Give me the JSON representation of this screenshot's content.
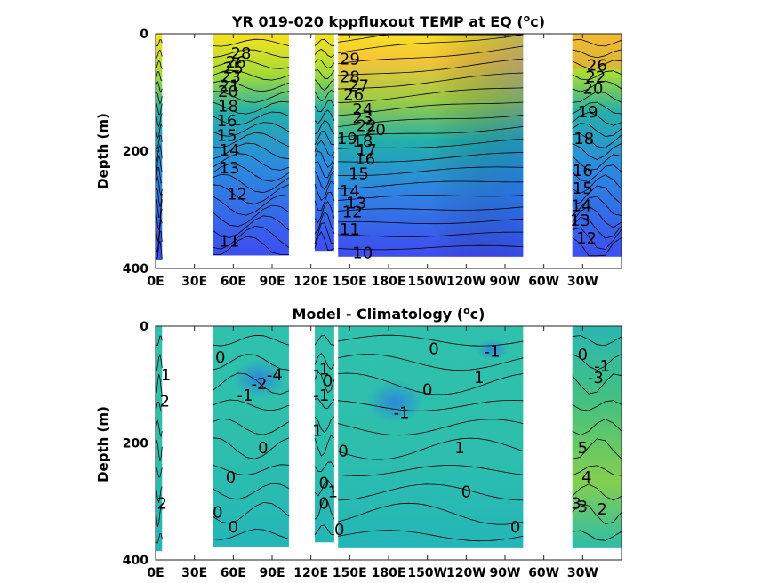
{
  "colors": {
    "warm": "#f9e121",
    "mid": "#1fb8a8",
    "cool": "#3b55e8",
    "anom_low": "#21a4c8",
    "anom_mid": "#2bc0ad",
    "anom_high": "#5ec962",
    "land": "#ffffff",
    "contour": "#000000"
  },
  "chart_data": [
    {
      "type": "heatmap",
      "title": "YR 019-020 kppfluxout TEMP at EQ (",
      "title_unit": "o",
      "title_tail": "c)",
      "xlabel": "",
      "ylabel": "Depth (m)",
      "x_ticks": [
        "0E",
        "30E",
        "60E",
        "90E",
        "120E",
        "150E",
        "180E",
        "150W",
        "120W",
        "90W",
        "60W",
        "30W"
      ],
      "x_tick_lon": [
        0,
        30,
        60,
        90,
        120,
        150,
        180,
        210,
        240,
        270,
        300,
        330
      ],
      "y_ticks": [
        "0",
        "200",
        "400"
      ],
      "y_tick_vals": [
        0,
        200,
        400
      ],
      "xlim": [
        0,
        360
      ],
      "ylim": [
        400,
        0
      ],
      "ocean_segments": [
        [
          0,
          5
        ],
        [
          44,
          103
        ],
        [
          123,
          138
        ],
        [
          141,
          284
        ],
        [
          322,
          360
        ]
      ],
      "contour_levels": [
        10,
        11,
        12,
        13,
        14,
        15,
        16,
        17,
        18,
        19,
        20,
        21,
        22,
        23,
        24,
        25,
        26,
        27,
        28,
        29
      ],
      "contour_labels": [
        {
          "text": "29",
          "lon": 150,
          "depth": 45
        },
        {
          "text": "28",
          "lon": 150,
          "depth": 75
        },
        {
          "text": "27",
          "lon": 157,
          "depth": 90
        },
        {
          "text": "26",
          "lon": 153,
          "depth": 105
        },
        {
          "text": "24",
          "lon": 160,
          "depth": 130
        },
        {
          "text": "23",
          "lon": 160,
          "depth": 145
        },
        {
          "text": "22",
          "lon": 163,
          "depth": 158
        },
        {
          "text": "20",
          "lon": 170,
          "depth": 165
        },
        {
          "text": "19",
          "lon": 148,
          "depth": 180
        },
        {
          "text": "18",
          "lon": 160,
          "depth": 185
        },
        {
          "text": "17",
          "lon": 163,
          "depth": 200
        },
        {
          "text": "16",
          "lon": 162,
          "depth": 215
        },
        {
          "text": "15",
          "lon": 157,
          "depth": 240
        },
        {
          "text": "14",
          "lon": 150,
          "depth": 270
        },
        {
          "text": "13",
          "lon": 155,
          "depth": 290
        },
        {
          "text": "12",
          "lon": 152,
          "depth": 305
        },
        {
          "text": "11",
          "lon": 150,
          "depth": 335
        },
        {
          "text": "10",
          "lon": 160,
          "depth": 375
        },
        {
          "text": "28",
          "lon": 66,
          "depth": 35
        },
        {
          "text": "26",
          "lon": 62,
          "depth": 50
        },
        {
          "text": "25",
          "lon": 60,
          "depth": 60
        },
        {
          "text": "23",
          "lon": 58,
          "depth": 75
        },
        {
          "text": "21",
          "lon": 57,
          "depth": 90
        },
        {
          "text": "20",
          "lon": 56,
          "depth": 100
        },
        {
          "text": "18",
          "lon": 56,
          "depth": 125
        },
        {
          "text": "16",
          "lon": 55,
          "depth": 150
        },
        {
          "text": "15",
          "lon": 55,
          "depth": 175
        },
        {
          "text": "14",
          "lon": 57,
          "depth": 200
        },
        {
          "text": "13",
          "lon": 57,
          "depth": 230
        },
        {
          "text": "12",
          "lon": 63,
          "depth": 275
        },
        {
          "text": "11",
          "lon": 57,
          "depth": 355
        },
        {
          "text": "26",
          "lon": 341,
          "depth": 55
        },
        {
          "text": "22",
          "lon": 340,
          "depth": 75
        },
        {
          "text": "20",
          "lon": 338,
          "depth": 95
        },
        {
          "text": "19",
          "lon": 334,
          "depth": 135
        },
        {
          "text": "18",
          "lon": 331,
          "depth": 180
        },
        {
          "text": "16",
          "lon": 330,
          "depth": 235
        },
        {
          "text": "15",
          "lon": 330,
          "depth": 265
        },
        {
          "text": "14",
          "lon": 329,
          "depth": 295
        },
        {
          "text": "13",
          "lon": 328,
          "depth": 320
        },
        {
          "text": "12",
          "lon": 333,
          "depth": 350
        }
      ]
    },
    {
      "type": "heatmap",
      "title": "Model - Climatology (",
      "title_unit": "o",
      "title_tail": "c)",
      "xlabel": "",
      "ylabel": "Depth (m)",
      "x_ticks": [
        "0E",
        "30E",
        "60E",
        "90E",
        "120E",
        "150E",
        "180E",
        "150W",
        "120W",
        "90W",
        "60W",
        "30W"
      ],
      "x_tick_lon": [
        0,
        30,
        60,
        90,
        120,
        150,
        180,
        210,
        240,
        270,
        300,
        330
      ],
      "y_ticks": [
        "0",
        "200",
        "400"
      ],
      "y_tick_vals": [
        0,
        200,
        400
      ],
      "xlim": [
        0,
        360
      ],
      "ylim": [
        400,
        0
      ],
      "ocean_segments": [
        [
          0,
          5
        ],
        [
          44,
          103
        ],
        [
          123,
          138
        ],
        [
          141,
          284
        ],
        [
          322,
          360
        ]
      ],
      "contour_levels": [
        -4,
        -3,
        -2,
        -1,
        0,
        1,
        2,
        3,
        4,
        5
      ],
      "contour_labels": [
        {
          "text": "0",
          "lon": 215,
          "depth": 40
        },
        {
          "text": "-1",
          "lon": 260,
          "depth": 45
        },
        {
          "text": "1",
          "lon": 250,
          "depth": 90
        },
        {
          "text": "0",
          "lon": 210,
          "depth": 110
        },
        {
          "text": "-1",
          "lon": 190,
          "depth": 150
        },
        {
          "text": "1",
          "lon": 235,
          "depth": 210
        },
        {
          "text": "0",
          "lon": 240,
          "depth": 285
        },
        {
          "text": "0",
          "lon": 278,
          "depth": 345
        },
        {
          "text": "0",
          "lon": 50,
          "depth": 55
        },
        {
          "text": "-4",
          "lon": 92,
          "depth": 85
        },
        {
          "text": "-2",
          "lon": 80,
          "depth": 100
        },
        {
          "text": "-1",
          "lon": 69,
          "depth": 120
        },
        {
          "text": "0",
          "lon": 83,
          "depth": 210
        },
        {
          "text": "0",
          "lon": 58,
          "depth": 260
        },
        {
          "text": "0",
          "lon": 48,
          "depth": 320
        },
        {
          "text": "0",
          "lon": 60,
          "depth": 345
        },
        {
          "text": "1",
          "lon": 8,
          "depth": 85
        },
        {
          "text": "2",
          "lon": 7,
          "depth": 130
        },
        {
          "text": "2",
          "lon": 5,
          "depth": 305
        },
        {
          "text": "-1",
          "lon": 128,
          "depth": 75
        },
        {
          "text": "0",
          "lon": 133,
          "depth": 95
        },
        {
          "text": "-1",
          "lon": 128,
          "depth": 120
        },
        {
          "text": "1",
          "lon": 125,
          "depth": 180
        },
        {
          "text": "0",
          "lon": 145,
          "depth": 215
        },
        {
          "text": "0",
          "lon": 130,
          "depth": 270
        },
        {
          "text": "1",
          "lon": 137,
          "depth": 285
        },
        {
          "text": "0",
          "lon": 130,
          "depth": 305
        },
        {
          "text": "0",
          "lon": 142,
          "depth": 350
        },
        {
          "text": "0",
          "lon": 330,
          "depth": 50
        },
        {
          "text": "-1",
          "lon": 345,
          "depth": 70
        },
        {
          "text": "-3",
          "lon": 340,
          "depth": 90
        },
        {
          "text": "5",
          "lon": 330,
          "depth": 210
        },
        {
          "text": "4",
          "lon": 333,
          "depth": 260
        },
        {
          "text": "3",
          "lon": 330,
          "depth": 310
        },
        {
          "text": "2",
          "lon": 345,
          "depth": 315
        },
        {
          "text": "3",
          "lon": 325,
          "depth": 305
        }
      ]
    }
  ]
}
